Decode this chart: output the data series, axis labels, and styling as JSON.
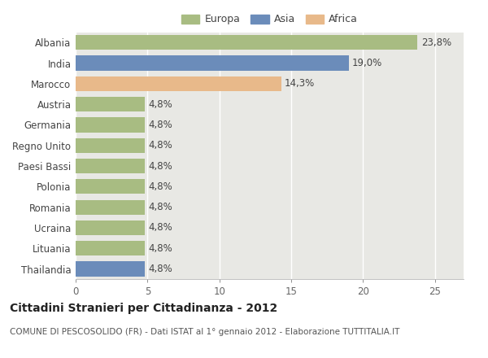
{
  "categories": [
    "Thailandia",
    "Lituania",
    "Ucraina",
    "Romania",
    "Polonia",
    "Paesi Bassi",
    "Regno Unito",
    "Germania",
    "Austria",
    "Marocco",
    "India",
    "Albania"
  ],
  "values": [
    4.8,
    4.8,
    4.8,
    4.8,
    4.8,
    4.8,
    4.8,
    4.8,
    4.8,
    14.3,
    19.0,
    23.8
  ],
  "colors": [
    "#6b8cba",
    "#a8bc82",
    "#a8bc82",
    "#a8bc82",
    "#a8bc82",
    "#a8bc82",
    "#a8bc82",
    "#a8bc82",
    "#a8bc82",
    "#e8b98a",
    "#6b8cba",
    "#a8bc82"
  ],
  "labels": [
    "4,8%",
    "4,8%",
    "4,8%",
    "4,8%",
    "4,8%",
    "4,8%",
    "4,8%",
    "4,8%",
    "4,8%",
    "14,3%",
    "19,0%",
    "23,8%"
  ],
  "legend_labels": [
    "Europa",
    "Asia",
    "Africa"
  ],
  "legend_colors": [
    "#a8bc82",
    "#6b8cba",
    "#e8b98a"
  ],
  "title": "Cittadini Stranieri per Cittadinanza - 2012",
  "subtitle": "COMUNE DI PESCOSOLIDO (FR) - Dati ISTAT al 1° gennaio 2012 - Elaborazione TUTTITALIA.IT",
  "xlim": [
    0,
    27
  ],
  "xticks": [
    0,
    5,
    10,
    15,
    20,
    25
  ],
  "plot_bg_color": "#e8e8e4",
  "fig_bg_color": "#ffffff",
  "grid_color": "#ffffff",
  "title_fontsize": 10,
  "subtitle_fontsize": 7.5,
  "label_fontsize": 8.5,
  "tick_fontsize": 8.5,
  "legend_fontsize": 9
}
